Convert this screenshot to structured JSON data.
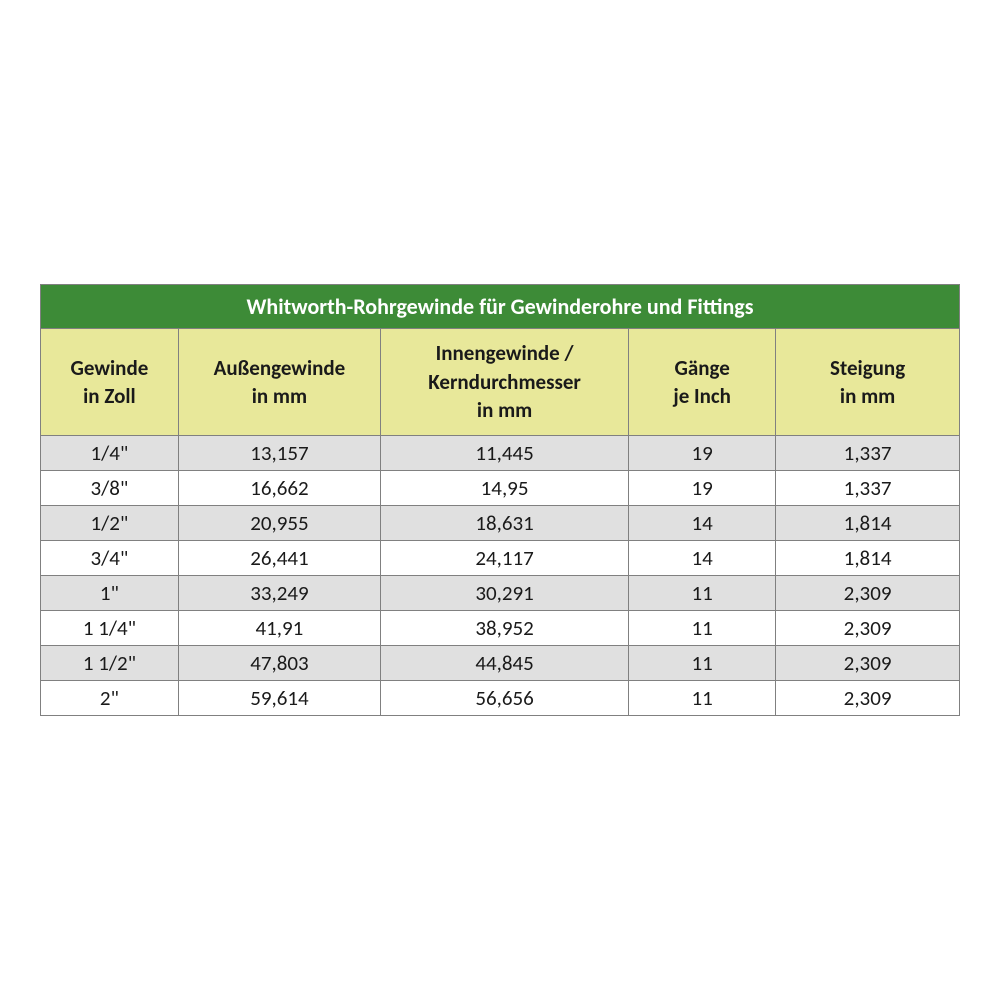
{
  "table": {
    "title": "Whitworth-Rohrgewinde für Gewinderohre und Fittings",
    "title_bg_color": "#3d8b37",
    "title_text_color": "#ffffff",
    "title_fontsize": 22,
    "header_bg_color": "#e8e89a",
    "header_text_color": "#1a1a1a",
    "header_fontsize": 21,
    "data_fontsize": 21,
    "row_odd_bg": "#e0e0e0",
    "row_even_bg": "#ffffff",
    "border_color": "#808080",
    "columns": [
      {
        "label_line1": "Gewinde",
        "label_line2": "in Zoll",
        "width_pct": 15
      },
      {
        "label_line1": "Außengewinde",
        "label_line2": "in mm",
        "width_pct": 22
      },
      {
        "label_line1": "Innengewinde /",
        "label_line2": "Kerndurchmesser",
        "label_line3": "in mm",
        "width_pct": 27
      },
      {
        "label_line1": "Gänge",
        "label_line2": "je Inch",
        "width_pct": 16
      },
      {
        "label_line1": "Steigung",
        "label_line2": "in mm",
        "width_pct": 20
      }
    ],
    "rows": [
      [
        "1/4\"",
        "13,157",
        "11,445",
        "19",
        "1,337"
      ],
      [
        "3/8\"",
        "16,662",
        "14,95",
        "19",
        "1,337"
      ],
      [
        "1/2\"",
        "20,955",
        "18,631",
        "14",
        "1,814"
      ],
      [
        "3/4\"",
        "26,441",
        "24,117",
        "14",
        "1,814"
      ],
      [
        "1\"",
        "33,249",
        "30,291",
        "11",
        "2,309"
      ],
      [
        "1 1/4\"",
        "41,91",
        "38,952",
        "11",
        "2,309"
      ],
      [
        "1 1/2\"",
        "47,803",
        "44,845",
        "11",
        "2,309"
      ],
      [
        "2\"",
        "59,614",
        "56,656",
        "11",
        "2,309"
      ]
    ]
  }
}
